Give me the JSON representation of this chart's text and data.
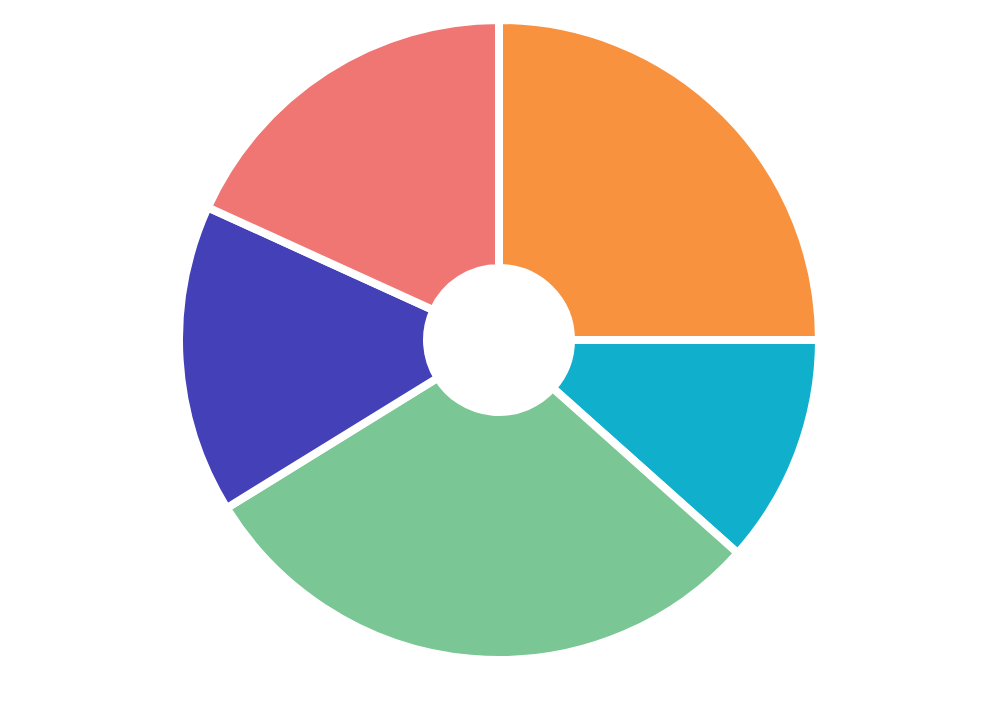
{
  "chart_data": {
    "type": "donut",
    "categories": [
      null,
      null,
      null,
      null,
      null
    ],
    "values": [
      25,
      11.6,
      29.6,
      15.6,
      18.2
    ],
    "colors": [
      "#f8923f",
      "#10b0cc",
      "#7bc695",
      "#4340b8",
      "#f07674"
    ]
  }
}
